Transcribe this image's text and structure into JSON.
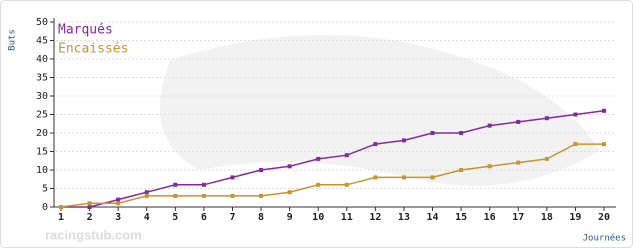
{
  "chart_data": {
    "type": "line",
    "y_label": "Buts",
    "x_label": "Journées",
    "watermark": "racingstub.com",
    "x": [
      1,
      2,
      3,
      4,
      5,
      6,
      7,
      8,
      9,
      10,
      11,
      12,
      13,
      14,
      15,
      16,
      17,
      18,
      19,
      20
    ],
    "series": [
      {
        "name": "Marqués",
        "color": "#852a9e",
        "values": [
          0,
          0,
          2,
          4,
          6,
          6,
          8,
          10,
          11,
          13,
          14,
          17,
          18,
          20,
          20,
          22,
          23,
          24,
          25,
          26
        ]
      },
      {
        "name": "Encaissés",
        "color": "#c8952c",
        "values": [
          0,
          1,
          1,
          3,
          3,
          3,
          3,
          3,
          4,
          6,
          6,
          8,
          8,
          8,
          10,
          11,
          12,
          13,
          17,
          17
        ]
      }
    ],
    "xlim": [
      1,
      20
    ],
    "xticks": [
      1,
      2,
      3,
      4,
      5,
      6,
      7,
      8,
      9,
      10,
      11,
      12,
      13,
      14,
      15,
      16,
      17,
      18,
      19,
      20
    ],
    "ylim": [
      0,
      50
    ],
    "yticks": [
      0,
      5,
      10,
      15,
      20,
      25,
      30,
      35,
      40,
      45,
      50
    ],
    "grid": true
  }
}
